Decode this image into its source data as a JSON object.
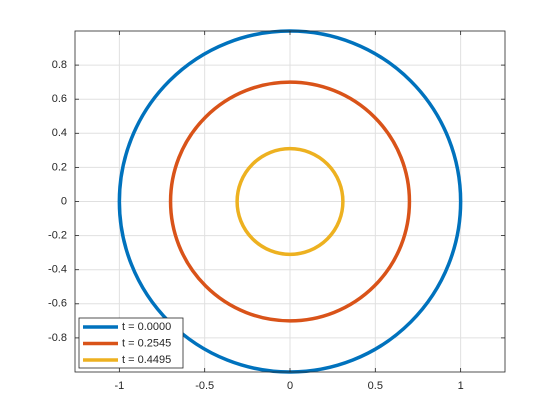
{
  "chart_data": {
    "type": "circle",
    "series": [
      {
        "name": "t = 0.0000",
        "color": "#0072bd",
        "radius": 1
      },
      {
        "name": "t = 0.2545",
        "color": "#d95319",
        "radius": 0.7
      },
      {
        "name": "t = 0.4495",
        "color": "#edb120",
        "radius": 0.31
      }
    ],
    "xlim": [
      -1.26,
      1.26
    ],
    "ylim": [
      -1,
      1
    ],
    "xticks": [
      -1,
      -0.5,
      0,
      0.5,
      1
    ],
    "yticks": [
      -0.8,
      -0.6,
      -0.4,
      -0.2,
      0,
      0.2,
      0.4,
      0.6,
      0.8
    ],
    "grid": true,
    "legend": "southwest"
  }
}
